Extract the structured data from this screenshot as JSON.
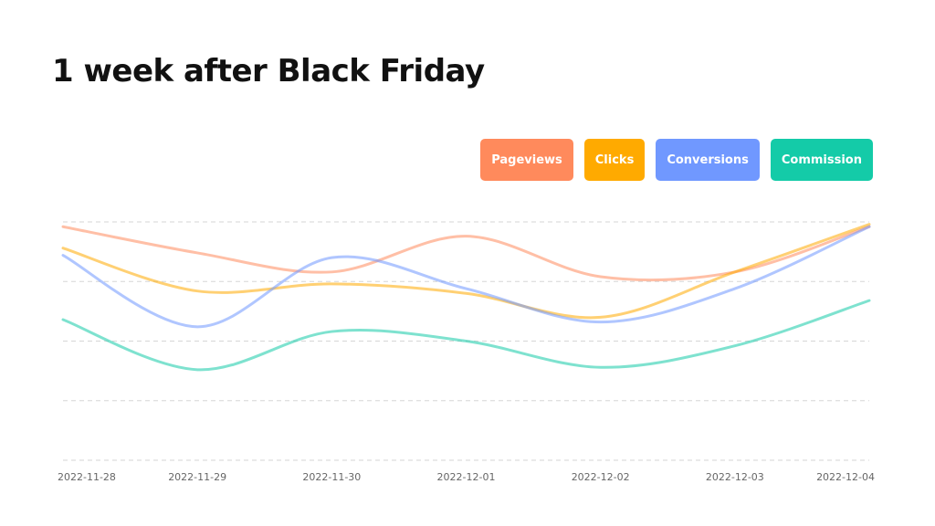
{
  "page": {
    "title": "1 week after Black Friday"
  },
  "legend": [
    {
      "label": "Pageviews",
      "color": "#FF8A5C"
    },
    {
      "label": "Clicks",
      "color": "#FFAA00"
    },
    {
      "label": "Conversions",
      "color": "#7098FF"
    },
    {
      "label": "Commission",
      "color": "#14CBA8"
    }
  ],
  "chart_data": {
    "type": "line",
    "title": "1 week after Black Friday",
    "xlabel": "",
    "ylabel": "",
    "x": [
      "2022-11-28",
      "2022-11-29",
      "2022-11-30",
      "2022-12-01",
      "2022-12-02",
      "2022-12-03",
      "2022-12-04"
    ],
    "ylim": [
      0,
      100
    ],
    "grid": true,
    "legend_position": "top-right",
    "series": [
      {
        "name": "Pageviews",
        "color": "#FF8A5C",
        "values": [
          98,
          87,
          79,
          94,
          77,
          79,
          98
        ]
      },
      {
        "name": "Clicks",
        "color": "#FFAA00",
        "values": [
          89,
          71,
          74,
          70,
          60,
          79,
          99
        ]
      },
      {
        "name": "Conversions",
        "color": "#7098FF",
        "values": [
          86,
          56,
          85,
          72,
          58,
          72,
          98
        ]
      },
      {
        "name": "Commission",
        "color": "#14CBA8",
        "values": [
          59,
          38,
          54,
          50,
          39,
          48,
          67
        ]
      }
    ]
  }
}
